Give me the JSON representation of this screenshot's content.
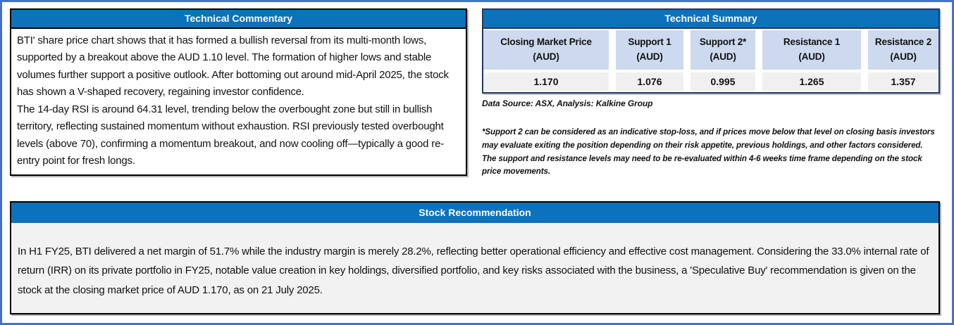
{
  "colors": {
    "header_blue": "#0C72BC",
    "outer_border": "#4472C4",
    "table_border": "#1F3864",
    "th_bg": "#CDD9EE",
    "td_bg": "#F0F0F0",
    "reco_bg": "#F2F2F2"
  },
  "technical_commentary": {
    "title": "Technical Commentary",
    "paragraphs": [
      "BTI' share price chart shows that it has formed a bullish reversal from its multi-month lows, supported by a breakout above the AUD 1.10 level. The formation of higher lows and stable volumes further support a positive outlook. After bottoming out around mid-April 2025, the stock has shown a V-shaped recovery, regaining investor confidence.",
      "The 14-day RSI is around 64.31 level, trending below the overbought zone but still in bullish territory, reflecting sustained momentum without exhaustion. RSI previously tested overbought levels (above 70), confirming a momentum breakout, and now cooling off—typically a good re-entry point for fresh longs."
    ]
  },
  "technical_summary": {
    "title": "Technical Summary",
    "columns": [
      {
        "label": "Closing Market Price",
        "unit": "(AUD)",
        "value": "1.170"
      },
      {
        "label": "Support 1",
        "unit": "(AUD)",
        "value": "1.076"
      },
      {
        "label": "Support 2*",
        "unit": "(AUD)",
        "value": "0.995"
      },
      {
        "label": "Resistance 1",
        "unit": "(AUD)",
        "value": "1.265"
      },
      {
        "label": "Resistance 2",
        "unit": "(AUD)",
        "value": "1.357"
      }
    ],
    "source_note": "Data Source: ASX, Analysis: Kalkine Group",
    "footnote": "*Support 2 can be considered as an indicative stop-loss, and if prices move below that level on closing basis investors may evaluate exiting the position depending on their risk appetite, previous holdings, and other factors considered. The support and resistance levels may need to be re-evaluated within 4-6 weeks time frame depending on the stock price movements."
  },
  "stock_recommendation": {
    "title": "Stock Recommendation",
    "body": "In H1 FY25, BTI delivered a net margin of 51.7% while the industry margin is merely 28.2%, reflecting better operational efficiency and effective cost management. Considering the 33.0% internal rate of return (IRR) on its private portfolio in FY25, notable value creation in key holdings, diversified portfolio, and key risks associated with the business, a 'Speculative Buy' recommendation is given on the stock at the closing market price of AUD 1.170, as on 21 July 2025."
  }
}
